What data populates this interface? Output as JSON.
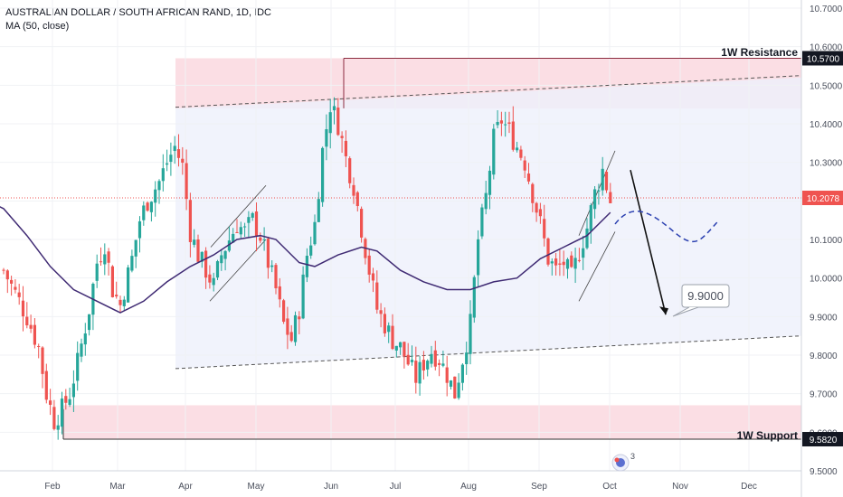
{
  "header": {
    "symbol_title": "AUSTRALIAN DOLLAR / SOUTH AFRICAN RAND, 1D, IDC",
    "indicator": "MA (50, close)"
  },
  "colors": {
    "up": "#26a69a",
    "down": "#ef5350",
    "ma": "#3f2a73",
    "zone": "#f9cdd6",
    "channel": "#eef0fb",
    "current": "#ef5350",
    "level_badge": "#131722"
  },
  "chart_data": {
    "type": "candlestick",
    "title": "AUSTRALIAN DOLLAR / SOUTH AFRICAN RAND, 1D, IDC",
    "ylim": [
      9.5,
      10.75
    ],
    "y_ticks": [
      9.5,
      9.6,
      9.7,
      9.8,
      9.9,
      10.0,
      10.1,
      10.2,
      10.3,
      10.4,
      10.5,
      10.6,
      10.7
    ],
    "y_tick_labels": [
      "9.5000",
      "9.6000",
      "9.7000",
      "9.8000",
      "9.9000",
      "10.0000",
      "10.1000",
      "10.2000",
      "10.3000",
      "10.4000",
      "10.5000",
      "10.6000",
      "10.7000"
    ],
    "x_labels": [
      "Feb",
      "Mar",
      "Apr",
      "May",
      "Jun",
      "Jul",
      "Aug",
      "Sep",
      "Oct",
      "Nov",
      "Dec"
    ],
    "ma_label": "MA (50, close)",
    "price_path": [
      [
        0,
        10.02
      ],
      [
        3,
        9.96
      ],
      [
        6,
        9.9
      ],
      [
        9,
        9.82
      ],
      [
        11,
        9.7
      ],
      [
        13,
        9.63
      ],
      [
        15,
        9.66
      ],
      [
        17,
        9.7
      ],
      [
        19,
        9.78
      ],
      [
        22,
        9.92
      ],
      [
        24,
        10.04
      ],
      [
        26,
        10.09
      ],
      [
        28,
        9.97
      ],
      [
        30,
        9.93
      ],
      [
        33,
        10.05
      ],
      [
        35,
        10.15
      ],
      [
        37,
        10.2
      ],
      [
        40,
        10.25
      ],
      [
        42,
        10.3
      ],
      [
        44,
        10.34
      ],
      [
        46,
        10.29
      ],
      [
        48,
        10.12
      ],
      [
        50,
        10.06
      ],
      [
        52,
        10.02
      ],
      [
        54,
        9.98
      ],
      [
        56,
        10.06
      ],
      [
        58,
        10.1
      ],
      [
        60,
        10.14
      ],
      [
        62,
        10.12
      ],
      [
        64,
        10.15
      ],
      [
        66,
        10.11
      ],
      [
        68,
        10.04
      ],
      [
        70,
        9.97
      ],
      [
        72,
        9.88
      ],
      [
        74,
        9.84
      ],
      [
        76,
        9.92
      ],
      [
        78,
        10.06
      ],
      [
        80,
        10.14
      ],
      [
        82,
        10.33
      ],
      [
        84,
        10.45
      ],
      [
        86,
        10.4
      ],
      [
        88,
        10.31
      ],
      [
        90,
        10.24
      ],
      [
        92,
        10.13
      ],
      [
        94,
        10.02
      ],
      [
        96,
        9.92
      ],
      [
        98,
        9.88
      ],
      [
        100,
        9.84
      ],
      [
        102,
        9.82
      ],
      [
        104,
        9.78
      ],
      [
        106,
        9.74
      ],
      [
        108,
        9.78
      ],
      [
        110,
        9.81
      ],
      [
        112,
        9.79
      ],
      [
        114,
        9.75
      ],
      [
        116,
        9.7
      ],
      [
        118,
        9.79
      ],
      [
        120,
        9.88
      ],
      [
        122,
        10.1
      ],
      [
        124,
        10.21
      ],
      [
        126,
        10.36
      ],
      [
        128,
        10.41
      ],
      [
        130,
        10.38
      ],
      [
        132,
        10.34
      ],
      [
        134,
        10.3
      ],
      [
        136,
        10.22
      ],
      [
        138,
        10.14
      ],
      [
        140,
        10.05
      ],
      [
        142,
        10.02
      ],
      [
        144,
        10.04
      ],
      [
        146,
        10.0
      ],
      [
        148,
        10.07
      ],
      [
        150,
        10.13
      ],
      [
        152,
        10.22
      ],
      [
        154,
        10.28
      ],
      [
        156,
        10.2
      ]
    ],
    "ma_path": [
      [
        -6,
        10.21
      ],
      [
        0,
        10.18
      ],
      [
        6,
        10.11
      ],
      [
        12,
        10.03
      ],
      [
        18,
        9.97
      ],
      [
        24,
        9.94
      ],
      [
        30,
        9.91
      ],
      [
        36,
        9.94
      ],
      [
        42,
        9.99
      ],
      [
        48,
        10.03
      ],
      [
        54,
        10.06
      ],
      [
        60,
        10.1
      ],
      [
        66,
        10.11
      ],
      [
        70,
        10.1
      ],
      [
        76,
        10.04
      ],
      [
        80,
        10.03
      ],
      [
        86,
        10.06
      ],
      [
        92,
        10.08
      ],
      [
        96,
        10.07
      ],
      [
        102,
        10.02
      ],
      [
        108,
        9.99
      ],
      [
        114,
        9.97
      ],
      [
        120,
        9.97
      ],
      [
        126,
        9.99
      ],
      [
        132,
        10.0
      ],
      [
        138,
        10.05
      ],
      [
        144,
        10.08
      ],
      [
        150,
        10.11
      ],
      [
        156,
        10.17
      ]
    ],
    "current_price": 10.2078,
    "current_price_label": "10.2078",
    "resistance": {
      "label": "1W Resistance",
      "value": 10.57,
      "value_label": "10.5700",
      "zone": [
        10.44,
        10.57
      ]
    },
    "support": {
      "label": "1W Support",
      "value": 9.582,
      "value_label": "9.5820",
      "zone": [
        9.582,
        9.67
      ]
    },
    "target": {
      "label": "9.9000",
      "value": 9.9
    },
    "badge_count": "3"
  }
}
